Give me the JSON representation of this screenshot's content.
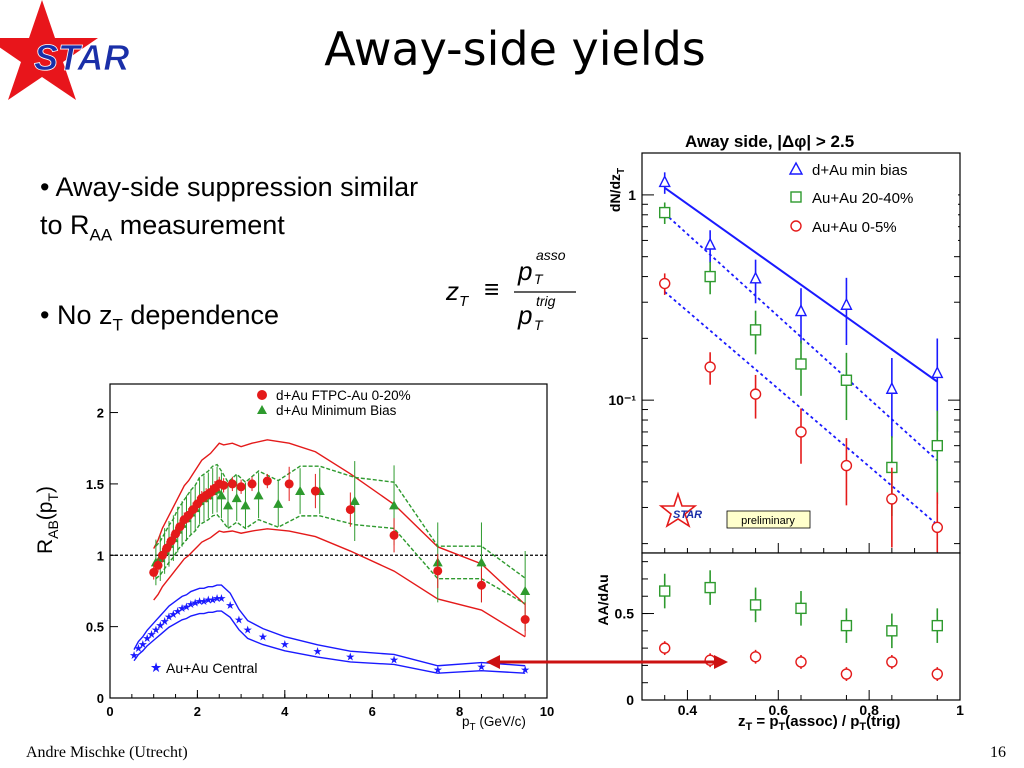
{
  "slide": {
    "title": "Away-side yields",
    "logo_text": "STAR",
    "bullet1_a": "• Away-side suppression similar",
    "bullet1_b_pre": "to R",
    "bullet1_b_sub": "AA",
    "bullet1_b_post": " measurement",
    "bullet2_pre": "• No z",
    "bullet2_sub": "T",
    "bullet2_post": " dependence",
    "footer_author": "Andre Mischke (Utrecht)",
    "footer_page": "16"
  },
  "formula": {
    "lhs": "z",
    "lhs_sub": "T",
    "equiv": "≡",
    "num": "p",
    "num_sup": "asso",
    "num_sub": "T",
    "den": "p",
    "den_sup": "trig",
    "den_sub": "T"
  },
  "colors": {
    "red": "#e41a1a",
    "green": "#2e9a2e",
    "blue": "#1a1aff",
    "arrow": "#cc1111"
  },
  "chart_data": [
    {
      "type": "scatter",
      "title": "",
      "xlabel": "p",
      "xlabel_sub": "T",
      "xlabel_unit": " (GeV/c)",
      "ylabel": "R",
      "ylabel_sub": "AB",
      "ylabel_arg": "(p",
      "ylabel_arg_sub": "T",
      "ylabel_close": ")",
      "xlim": [
        0,
        10
      ],
      "ylim": [
        0,
        2.2
      ],
      "xticks": [
        "0",
        "2",
        "4",
        "6",
        "8",
        "10"
      ],
      "yticks": [
        "0",
        "0.5",
        "1",
        "1.5",
        "2"
      ],
      "reference_line": 1,
      "legend": [
        "d+Au FTPC-Au 0-20%",
        "d+Au Minimum Bias",
        "Au+Au Central"
      ],
      "series": [
        {
          "name": "d+Au FTPC-Au 0-20%",
          "marker": "circle",
          "color": "red",
          "x": [
            1.0,
            1.1,
            1.2,
            1.3,
            1.4,
            1.5,
            1.6,
            1.7,
            1.8,
            1.9,
            2.0,
            2.1,
            2.2,
            2.3,
            2.4,
            2.5,
            2.6,
            2.8,
            3.0,
            3.25,
            3.6,
            4.1,
            4.7,
            5.5,
            6.5,
            7.5,
            8.5,
            9.5
          ],
          "y": [
            0.88,
            0.93,
            1.0,
            1.05,
            1.1,
            1.15,
            1.2,
            1.25,
            1.28,
            1.32,
            1.36,
            1.4,
            1.42,
            1.44,
            1.47,
            1.5,
            1.49,
            1.5,
            1.48,
            1.5,
            1.52,
            1.5,
            1.45,
            1.32,
            1.14,
            0.89,
            0.79,
            0.55
          ]
        },
        {
          "name": "d+Au Minimum Bias",
          "marker": "triangle",
          "color": "green",
          "x": [
            1.05,
            1.15,
            1.25,
            1.35,
            1.45,
            1.55,
            1.65,
            1.75,
            1.85,
            1.95,
            2.05,
            2.15,
            2.25,
            2.35,
            2.45,
            2.55,
            2.7,
            2.9,
            3.1,
            3.4,
            3.85,
            4.35,
            4.8,
            5.6,
            6.5,
            7.5,
            8.5,
            9.5
          ],
          "y": [
            0.95,
            0.98,
            1.03,
            1.08,
            1.12,
            1.18,
            1.22,
            1.26,
            1.3,
            1.33,
            1.38,
            1.4,
            1.42,
            1.45,
            1.46,
            1.42,
            1.35,
            1.4,
            1.35,
            1.42,
            1.36,
            1.45,
            1.45,
            1.38,
            1.35,
            0.95,
            0.95,
            0.75
          ]
        },
        {
          "name": "Au+Au Central",
          "marker": "star",
          "color": "blue",
          "x": [
            0.55,
            0.65,
            0.75,
            0.85,
            0.95,
            1.05,
            1.15,
            1.25,
            1.35,
            1.45,
            1.55,
            1.65,
            1.75,
            1.85,
            1.95,
            2.05,
            2.15,
            2.25,
            2.35,
            2.45,
            2.55,
            2.75,
            2.95,
            3.15,
            3.5,
            4.0,
            4.75,
            5.5,
            6.5,
            7.5,
            8.5,
            9.5
          ],
          "y": [
            0.3,
            0.35,
            0.38,
            0.42,
            0.45,
            0.48,
            0.51,
            0.54,
            0.57,
            0.59,
            0.61,
            0.63,
            0.64,
            0.66,
            0.67,
            0.68,
            0.68,
            0.69,
            0.69,
            0.7,
            0.7,
            0.65,
            0.55,
            0.48,
            0.43,
            0.38,
            0.33,
            0.29,
            0.27,
            0.2,
            0.22,
            0.2
          ]
        }
      ]
    },
    {
      "type": "scatter",
      "title": "Away side, |Δφ| > 2.5",
      "ylabel": "dN/dz",
      "ylabel_sub": "T",
      "ylog": true,
      "ylim": [
        0.018,
        1.6
      ],
      "yticks": [
        "10⁻¹",
        "1"
      ],
      "badge": "preliminary",
      "logo_text": "STAR",
      "legend": [
        "d+Au min bias",
        "Au+Au 20-40%",
        "Au+Au 0-5%"
      ],
      "series": [
        {
          "name": "d+Au min bias",
          "marker": "open-triangle",
          "color": "blue",
          "x": [
            0.35,
            0.45,
            0.55,
            0.65,
            0.75,
            0.85,
            0.95
          ],
          "y": [
            1.15,
            0.57,
            0.39,
            0.27,
            0.29,
            0.113,
            0.135
          ]
        },
        {
          "name": "Au+Au 20-40%",
          "marker": "open-square",
          "color": "green",
          "x": [
            0.35,
            0.45,
            0.55,
            0.65,
            0.75,
            0.85,
            0.95
          ],
          "y": [
            0.82,
            0.4,
            0.22,
            0.15,
            0.125,
            0.047,
            0.06
          ]
        },
        {
          "name": "Au+Au 0-5%",
          "marker": "open-circle",
          "color": "red",
          "x": [
            0.35,
            0.45,
            0.55,
            0.65,
            0.75,
            0.85,
            0.95
          ],
          "y": [
            0.37,
            0.145,
            0.107,
            0.07,
            0.048,
            0.033,
            0.024
          ]
        }
      ]
    },
    {
      "type": "scatter",
      "ylabel": "AA/dAu",
      "xlabel": "z",
      "xlabel_sub": "T",
      "xlabel_mid": " = p",
      "xlabel_mid_sub": "T",
      "xlabel_mid2": "(assoc) / p",
      "xlabel_mid2_sub": "T",
      "xlabel_end": "(trig)",
      "xlim": [
        0.3,
        1.0
      ],
      "ylim": [
        0,
        0.85
      ],
      "xticks": [
        "0.4",
        "0.6",
        "0.8",
        "1"
      ],
      "yticks": [
        "0",
        "0.5"
      ],
      "series": [
        {
          "name": "Au+Au 20-40%",
          "marker": "open-square",
          "color": "green",
          "x": [
            0.35,
            0.45,
            0.55,
            0.65,
            0.75,
            0.85,
            0.95
          ],
          "y": [
            0.63,
            0.65,
            0.55,
            0.53,
            0.43,
            0.4,
            0.43
          ]
        },
        {
          "name": "Au+Au 0-5%",
          "marker": "open-circle",
          "color": "red",
          "x": [
            0.35,
            0.45,
            0.55,
            0.65,
            0.75,
            0.85,
            0.95
          ],
          "y": [
            0.3,
            0.23,
            0.25,
            0.22,
            0.15,
            0.22,
            0.15
          ]
        }
      ]
    }
  ]
}
